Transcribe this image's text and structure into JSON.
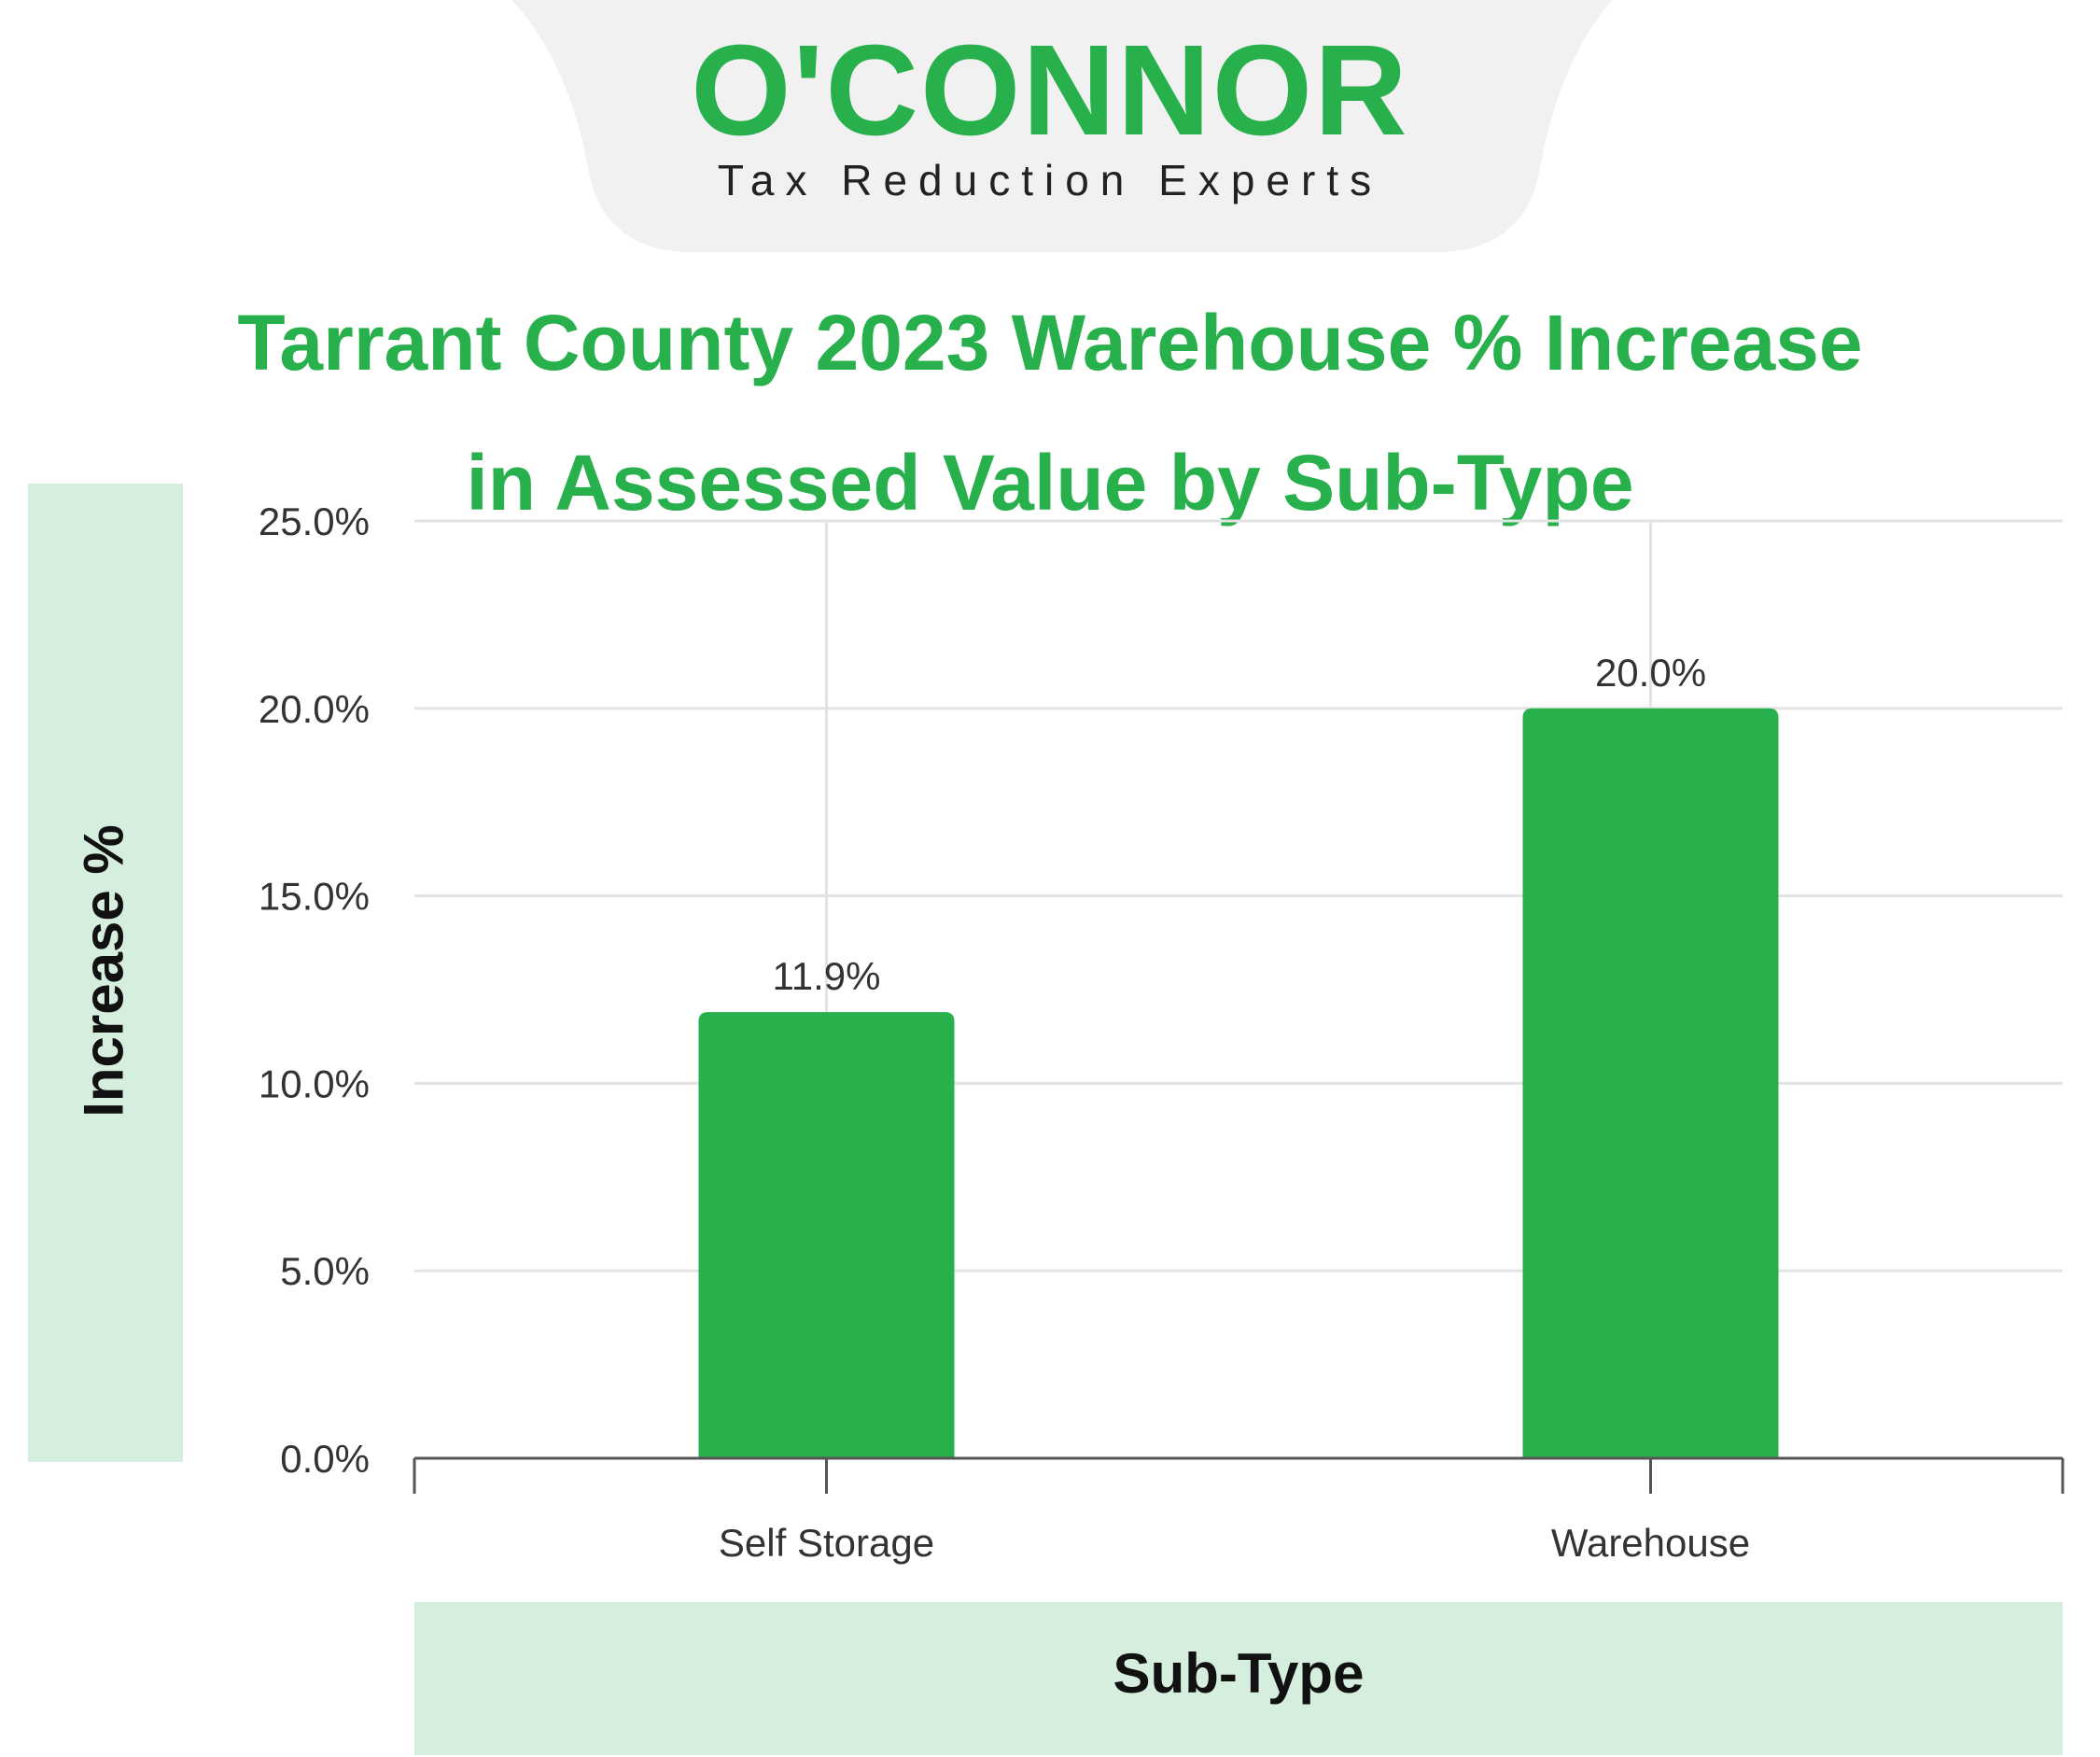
{
  "logo": {
    "brand": "O'CONNOR",
    "tagline": "Tax Reduction Experts"
  },
  "colors": {
    "brand_green": "#27b04b",
    "panel_green": "#d5eedd",
    "logo_tab": "#f1f1f1",
    "grid": "#e3e3e3",
    "axis": "#555555"
  },
  "chart_data": {
    "type": "bar",
    "title_lines": [
      "Tarrant County 2023 Warehouse % Increase",
      "in Assessed Value by Sub-Type"
    ],
    "xlabel": "Sub-Type",
    "ylabel": "Increase %",
    "categories": [
      "Self Storage",
      "Warehouse"
    ],
    "values": [
      11.9,
      20.0
    ],
    "value_labels": [
      "11.9%",
      "20.0%"
    ],
    "ylim": [
      0,
      25
    ],
    "y_ticks": [
      0,
      5,
      10,
      15,
      20,
      25
    ],
    "y_tick_labels": [
      "0.0%",
      "5.0%",
      "10.0%",
      "15.0%",
      "20.0%",
      "25.0%"
    ],
    "grid": true,
    "legend": "none"
  }
}
